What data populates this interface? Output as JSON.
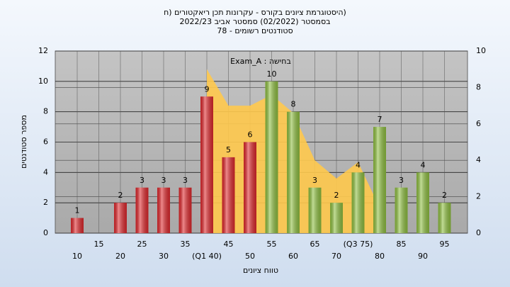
{
  "chart_data": {
    "type": "bar",
    "title": [
      "(היסטוגרמת ציונים בקורס - עקרונות תכן ריאקטורים (ח",
      "בסמסטר  (02/2022)  סמסטר אביב 2022/23",
      "סטודנטים רשומים - 78"
    ],
    "annotation": "בחישה : Exam_A",
    "x_label": "טווח ציונים",
    "y_label": "מספר סטודנטים",
    "categories": [
      "10",
      "15",
      "20",
      "25",
      "30",
      "35",
      "(Q1 40)",
      "45",
      "50",
      "55",
      "60",
      "65",
      "70",
      "(Q3 75)",
      "80",
      "85",
      "90",
      "95"
    ],
    "series": [
      {
        "type": "bar",
        "values": [
          1,
          null,
          2,
          3,
          3,
          3,
          9,
          5,
          6,
          10,
          8,
          3,
          2,
          4,
          7,
          3,
          4,
          2
        ],
        "colors": [
          "#e0282c",
          "#e0282c",
          "#e0282c",
          "#e0282c",
          "#e0282c",
          "#e0282c",
          "#e0282c",
          "#e0282c",
          "#e0282c",
          "#8fc040",
          "#8fc040",
          "#8fc040",
          "#8fc040",
          "#8fc040",
          "#8fc040",
          "#8fc040",
          "#8fc040",
          "#8fc040"
        ]
      },
      {
        "type": "area",
        "axis": "y2",
        "color": "#ffc94d",
        "values": [
          null,
          null,
          null,
          null,
          null,
          null,
          9,
          7,
          7,
          7.6,
          6.6,
          4,
          3,
          3.9,
          1.4,
          null,
          null,
          null
        ]
      }
    ],
    "ylim": [
      0,
      12
    ],
    "yticks": [
      0,
      2,
      4,
      6,
      8,
      10,
      12
    ],
    "y2lim": [
      0,
      10
    ],
    "y2ticks": [
      0,
      2,
      4,
      6,
      8,
      10
    ],
    "grid": true
  }
}
